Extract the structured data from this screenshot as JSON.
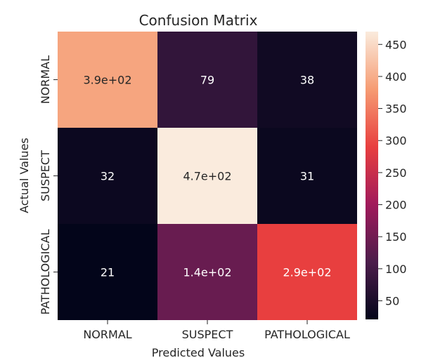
{
  "chart_data": {
    "type": "heatmap",
    "title": "Confusion Matrix",
    "xlabel": "Predicted Values",
    "ylabel": "Actual Values",
    "x_categories": [
      "NORMAL",
      "SUSPECT",
      "PATHOLOGICAL"
    ],
    "y_categories": [
      "NORMAL",
      "SUSPECT",
      "PATHOLOGICAL"
    ],
    "values": [
      [
        390,
        79,
        38
      ],
      [
        32,
        470,
        31
      ],
      [
        21,
        140,
        290
      ]
    ],
    "cell_labels": [
      [
        "3.9e+02",
        "79",
        "38"
      ],
      [
        "32",
        "4.7e+02",
        "31"
      ],
      [
        "21",
        "1.4e+02",
        "2.9e+02"
      ]
    ],
    "colorbar": {
      "range": [
        21,
        470
      ],
      "ticks": [
        "50",
        "100",
        "150",
        "200",
        "250",
        "300",
        "350",
        "400",
        "450"
      ],
      "colormap": "rocket",
      "colors": [
        "#03051a",
        "#4c1d4b",
        "#a11a5b",
        "#e83f3f",
        "#f69c73",
        "#faebdd"
      ]
    },
    "grid": false
  }
}
